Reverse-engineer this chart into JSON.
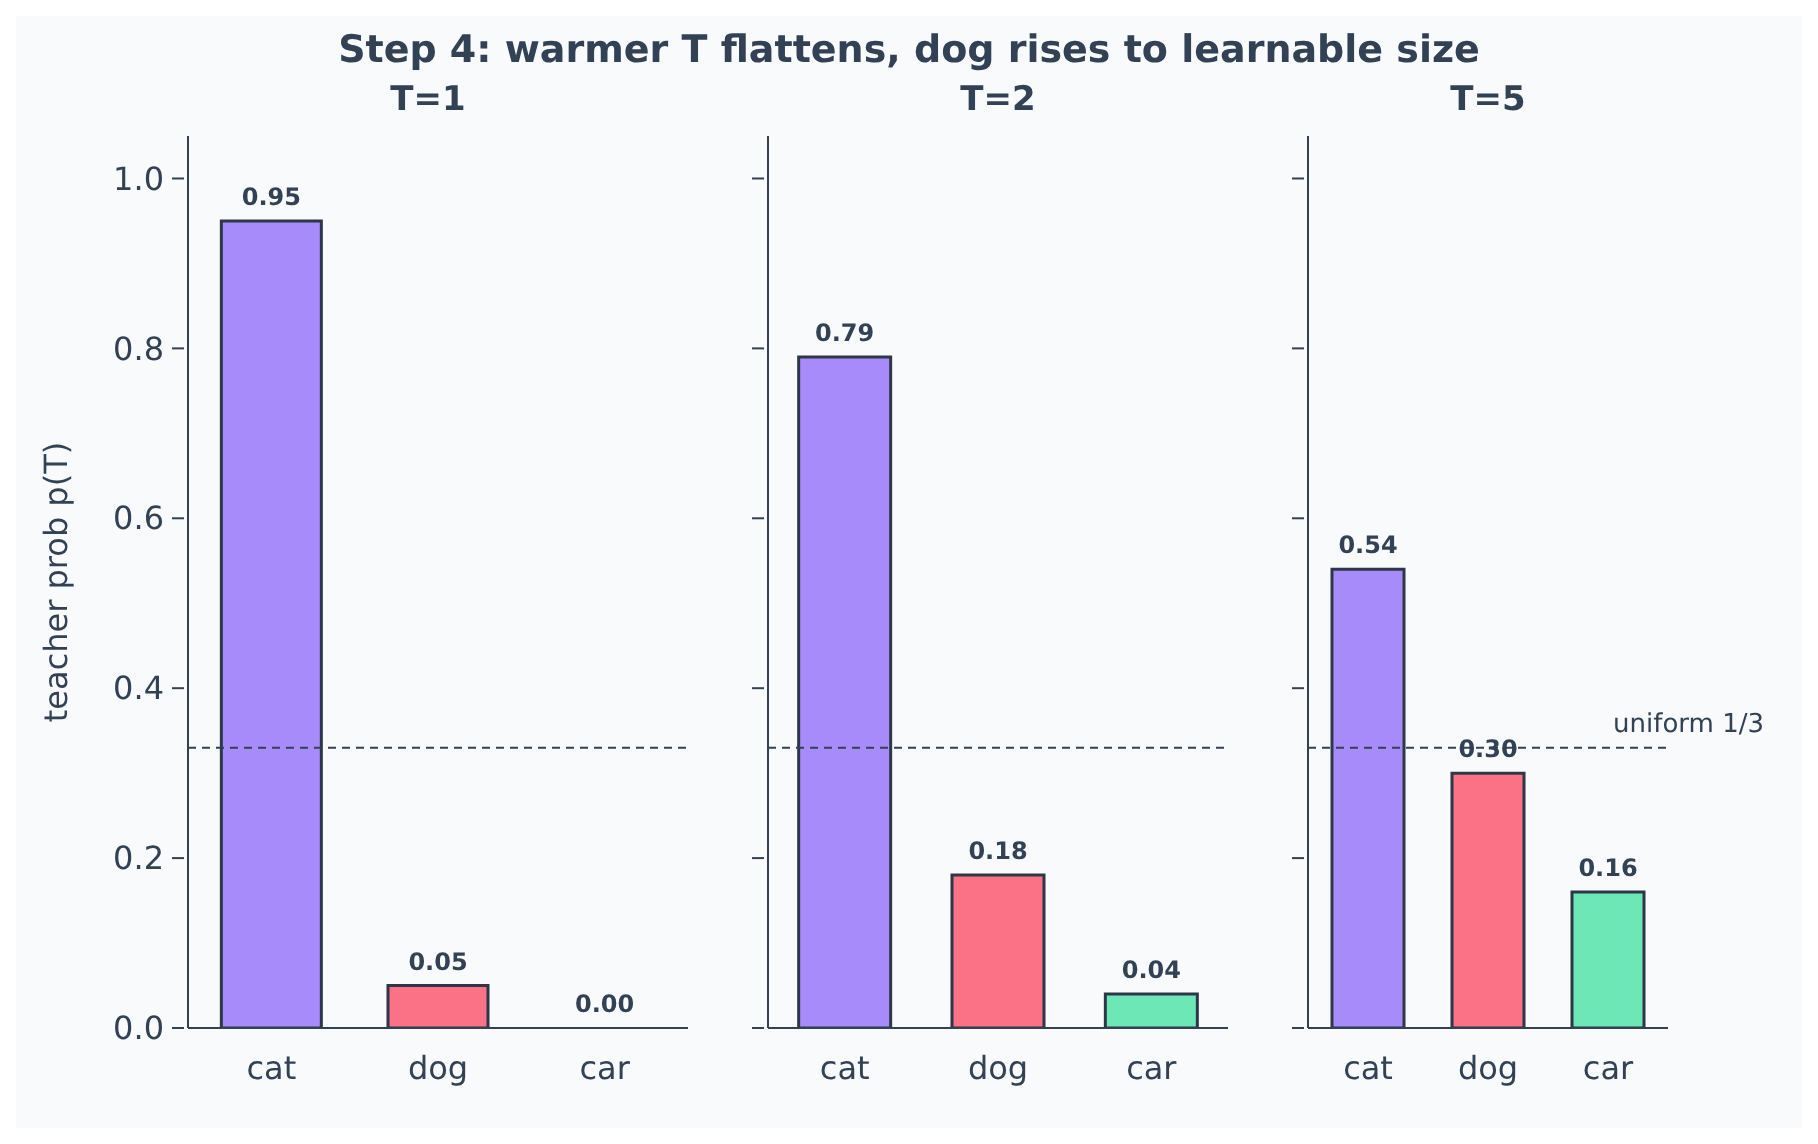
{
  "chart_data": [
    {
      "type": "bar",
      "title": "T=1",
      "ylabel": "teacher prob p(T)",
      "annotations": [
        "Step 4: warmer T flattens, dog rises to learnable size"
      ],
      "categories": [
        "cat",
        "dog",
        "car"
      ],
      "values": [
        0.95,
        0.05,
        0.0
      ],
      "value_labels": [
        "0.95",
        "0.05",
        "0.00"
      ],
      "colors": [
        "#a78bfa",
        "#fb7185",
        "#6ee7b7"
      ],
      "ylim": [
        0,
        1.05
      ],
      "yticks": [
        {
          "value": 0,
          "label": "0.0"
        },
        0.2,
        0.4,
        0.6,
        0.8,
        {
          "value": 1,
          "label": "1.0"
        }
      ],
      "ref_lines": [
        {
          "axis": "y",
          "value": 0.33,
          "color": "#334155",
          "line_style": "dashed"
        }
      ],
      "grid": false,
      "legend": false
    },
    {
      "type": "bar",
      "title": "T=2",
      "categories": [
        "cat",
        "dog",
        "car"
      ],
      "values": [
        0.79,
        0.18,
        0.04
      ],
      "value_labels": [
        "0.79",
        "0.18",
        "0.04"
      ],
      "colors": [
        "#a78bfa",
        "#fb7185",
        "#6ee7b7"
      ],
      "ylim": [
        0,
        1.05
      ],
      "yticks": [
        0,
        0.2,
        0.4,
        0.6,
        0.8,
        1
      ],
      "tick_labels": "x",
      "ref_lines": [
        {
          "axis": "y",
          "value": 0.33,
          "color": "#334155",
          "line_style": "dashed"
        }
      ],
      "grid": false,
      "legend": false
    },
    {
      "type": "bar",
      "title": "T=5",
      "categories": [
        "cat",
        "dog",
        "car"
      ],
      "values": [
        0.54,
        0.3,
        0.16
      ],
      "value_labels": [
        "0.54",
        "0.30",
        "0.16"
      ],
      "colors": [
        "#a78bfa",
        "#fb7185",
        "#6ee7b7"
      ],
      "ylim": [
        0,
        1.05
      ],
      "yticks": [
        0,
        0.2,
        0.4,
        0.6,
        0.8,
        1
      ],
      "tick_labels": "x",
      "ref_lines": [
        {
          "axis": "y",
          "value": 0.33,
          "color": "#334155",
          "line_style": "dashed",
          "label": "uniform 1/3"
        }
      ],
      "grid": false,
      "legend": false
    }
  ]
}
